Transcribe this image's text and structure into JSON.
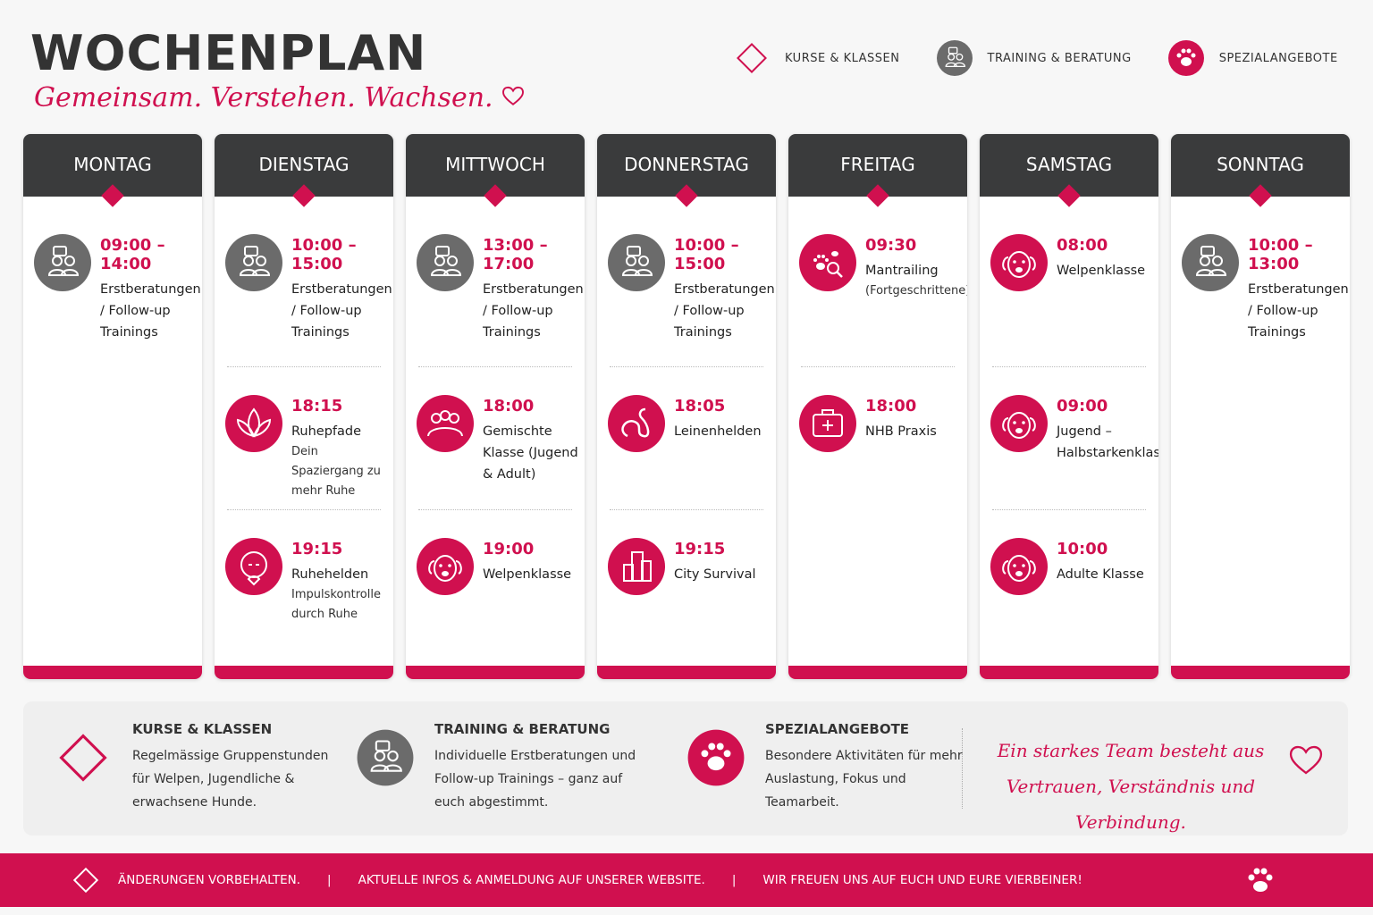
{
  "header": {
    "title": "WOCHENPLAN",
    "subtitle": "Gemeinsam. Verstehen. Wachsen."
  },
  "legend": [
    "KURSE & KLASSEN",
    "TRAINING & BERATUNG",
    "SPEZIALANGEBOTE"
  ],
  "days": [
    {
      "name": "MONTAG",
      "events": [
        {
          "time": "09:00 – 14:00",
          "title": "Erstberatungen / Follow-up Trainings"
        }
      ]
    },
    {
      "name": "DIENSTAG",
      "events": [
        {
          "time": "10:00 – 15:00",
          "title": "Erstberatungen / Follow-up Trainings"
        },
        {
          "time": "18:15",
          "title": "Ruhepfade",
          "subtitle": "Dein Spaziergang zu mehr Ruhe"
        },
        {
          "time": "19:15",
          "title": "Ruhehelden",
          "subtitle": "Impulskontrolle durch Ruhe"
        }
      ]
    },
    {
      "name": "MITTWOCH",
      "events": [
        {
          "time": "13:00 – 17:00",
          "title": "Erstberatungen / Follow-up Trainings"
        },
        {
          "time": "18:00",
          "title": "Gemischte Klasse (Jugend & Adult)"
        },
        {
          "time": "19:00",
          "title": "Welpenklasse"
        }
      ]
    },
    {
      "name": "DONNERSTAG",
      "events": [
        {
          "time": "10:00 – 15:00",
          "title": "Erstberatungen / Follow-up Trainings"
        },
        {
          "time": "18:05",
          "title": "Leinenhelden"
        },
        {
          "time": "19:15",
          "title": "City Survival"
        }
      ]
    },
    {
      "name": "FREITAG",
      "events": [
        {
          "time": "09:30",
          "title": "Mantrailing",
          "subtitle": "(Fortgeschrittene)"
        },
        {
          "time": "18:00",
          "title": "NHB Praxis"
        }
      ]
    },
    {
      "name": "SAMSTAG",
      "events": [
        {
          "time": "08:00",
          "title": "Welpenklasse"
        },
        {
          "time": "09:00",
          "title": "Jugend – Halbstarkenklasse"
        },
        {
          "time": "10:00",
          "title": "Adulte Klasse"
        }
      ]
    },
    {
      "name": "SONNTAG",
      "events": [
        {
          "time": "10:00 – 13:00",
          "title": "Erstberatungen / Follow-up Trainings"
        }
      ]
    }
  ],
  "info": [
    {
      "title": "KURSE & KLASSEN",
      "text": "Regelmässige Gruppenstunden für Welpen, Jugendliche & erwachsene Hunde."
    },
    {
      "title": "TRAINING & BERATUNG",
      "text": "Individuelle Erstberatungen und Follow-up Trainings – ganz auf euch abgestimmt."
    },
    {
      "title": "SPEZIALANGEBOTE",
      "text": "Besondere Aktivitäten für mehr Auslastung, Fokus und Teamarbeit."
    }
  ],
  "quote": "Ein starkes Team besteht aus Vertrauen, Verständnis und Verbindung.",
  "footer": [
    "ÄNDERUNGEN VORBEHALTEN.",
    "AKTUELLE INFOS & ANMELDUNG AUF UNSERER WEBSITE.",
    "WIR FREUEN UNS AUF EUCH UND EURE VIERBEINER!"
  ]
}
